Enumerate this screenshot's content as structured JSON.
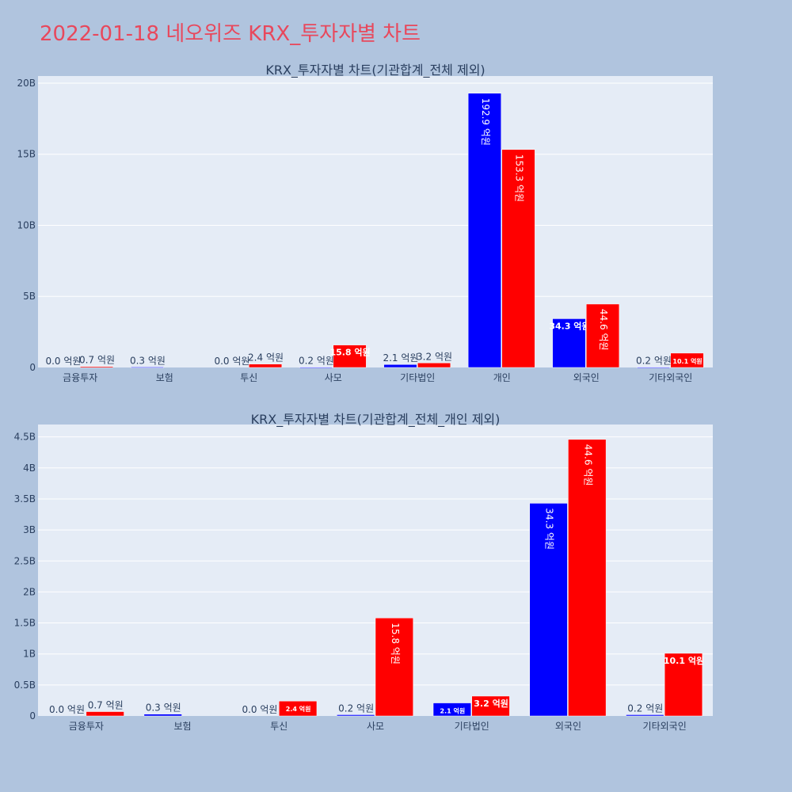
{
  "page": {
    "title": "2022-01-18 네오위즈 KRX_투자자별 차트",
    "background": "#b0c4de",
    "title_color": "#e8485c"
  },
  "colors": {
    "buy": "#0000ff",
    "sell": "#ff0000",
    "plot_bg": "#e5ecf6",
    "grid": "#ffffff",
    "text": "#2a3f5f"
  },
  "chart_data": [
    {
      "type": "bar",
      "title": "KRX_투자자별 차트(기관합계_전체 제외)",
      "categories": [
        "금융투자",
        "보험",
        "투신",
        "사모",
        "기타법인",
        "개인",
        "외국인",
        "기타외국인"
      ],
      "series": [
        {
          "color": "#0000ff",
          "values": [
            0.0,
            0.03,
            0.0,
            0.02,
            0.21,
            19.29,
            3.43,
            0.02
          ],
          "labels": [
            "0.0 억원",
            "0.3 억원",
            "0.0 억원",
            "0.2 억원",
            "2.1 억원",
            "192.9 억원",
            "34.3 억원",
            "0.2 억원"
          ]
        },
        {
          "color": "#ff0000",
          "values": [
            0.07,
            0.0,
            0.24,
            1.58,
            0.32,
            15.33,
            4.46,
            1.01
          ],
          "labels": [
            "0.7 억원",
            "",
            "2.4 억원",
            "15.8 억원",
            "3.2 억원",
            "153.3 억원",
            "44.6 억원",
            "10.1 억원"
          ]
        }
      ],
      "yticks": [
        "0",
        "5B",
        "10B",
        "15B",
        "20B"
      ],
      "ytick_values": [
        0,
        5,
        10,
        15,
        20
      ],
      "ylim": [
        0,
        20.5
      ],
      "grid": true,
      "legend": "none"
    },
    {
      "type": "bar",
      "title": "KRX_투자자별 차트(기관합계_전체_개인 제외)",
      "categories": [
        "금융투자",
        "보험",
        "투신",
        "사모",
        "기타법인",
        "외국인",
        "기타외국인"
      ],
      "series": [
        {
          "color": "#0000ff",
          "values": [
            0.0,
            0.03,
            0.0,
            0.02,
            0.21,
            3.43,
            0.02
          ],
          "labels": [
            "0.0 억원",
            "0.3 억원",
            "0.0 억원",
            "0.2 억원",
            "2.1 억원",
            "34.3 억원",
            "0.2 억원"
          ]
        },
        {
          "color": "#ff0000",
          "values": [
            0.07,
            0.0,
            0.24,
            1.58,
            0.32,
            4.46,
            1.01
          ],
          "labels": [
            "0.7 억원",
            "",
            "2.4 억원",
            "15.8 억원",
            "3.2 억원",
            "44.6 억원",
            "10.1 억원"
          ]
        }
      ],
      "yticks": [
        "0",
        "0.5B",
        "1B",
        "1.5B",
        "2B",
        "2.5B",
        "3B",
        "3.5B",
        "4B",
        "4.5B"
      ],
      "ytick_values": [
        0,
        0.5,
        1,
        1.5,
        2,
        2.5,
        3,
        3.5,
        4,
        4.5
      ],
      "ylim": [
        0,
        4.7
      ],
      "grid": true,
      "legend": "none"
    }
  ]
}
